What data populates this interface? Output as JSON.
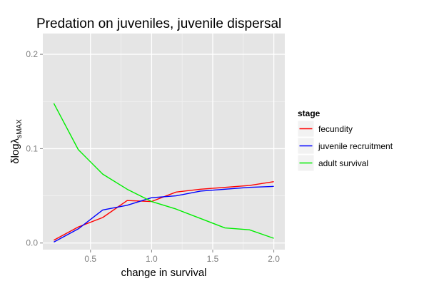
{
  "chart_data": {
    "type": "line",
    "title": "Predation on juveniles, juvenile dispersal",
    "xlabel": "change in survival",
    "ylabel_main": "δlogλ",
    "ylabel_sub": "sMAX",
    "xlim": [
      0.11,
      2.09
    ],
    "ylim": [
      -0.007,
      0.222
    ],
    "xticks": [
      0.5,
      1.0,
      1.5,
      2.0
    ],
    "xtick_labels": [
      "0.5",
      "1.0",
      "1.5",
      "2.0"
    ],
    "yticks": [
      0.0,
      0.1,
      0.2
    ],
    "ytick_labels": [
      "0.0",
      "0.1",
      "0.2"
    ],
    "grid": true,
    "legend_title": "stage",
    "legend_position": "right",
    "x": [
      0.2,
      0.4,
      0.6,
      0.8,
      1.0,
      1.2,
      1.4,
      1.6,
      1.8,
      2.0
    ],
    "series": [
      {
        "name": "fecundity",
        "color": "#ff0000",
        "values": [
          0.003,
          0.017,
          0.027,
          0.045,
          0.044,
          0.054,
          0.057,
          0.059,
          0.061,
          0.065
        ]
      },
      {
        "name": "juvenile recruitment",
        "color": "#0000ff",
        "values": [
          0.001,
          0.015,
          0.035,
          0.04,
          0.048,
          0.05,
          0.055,
          0.057,
          0.059,
          0.06
        ]
      },
      {
        "name": "adult survival",
        "color": "#00ee00",
        "values": [
          0.148,
          0.099,
          0.073,
          0.057,
          0.044,
          0.036,
          0.026,
          0.016,
          0.014,
          0.005
        ]
      }
    ]
  }
}
